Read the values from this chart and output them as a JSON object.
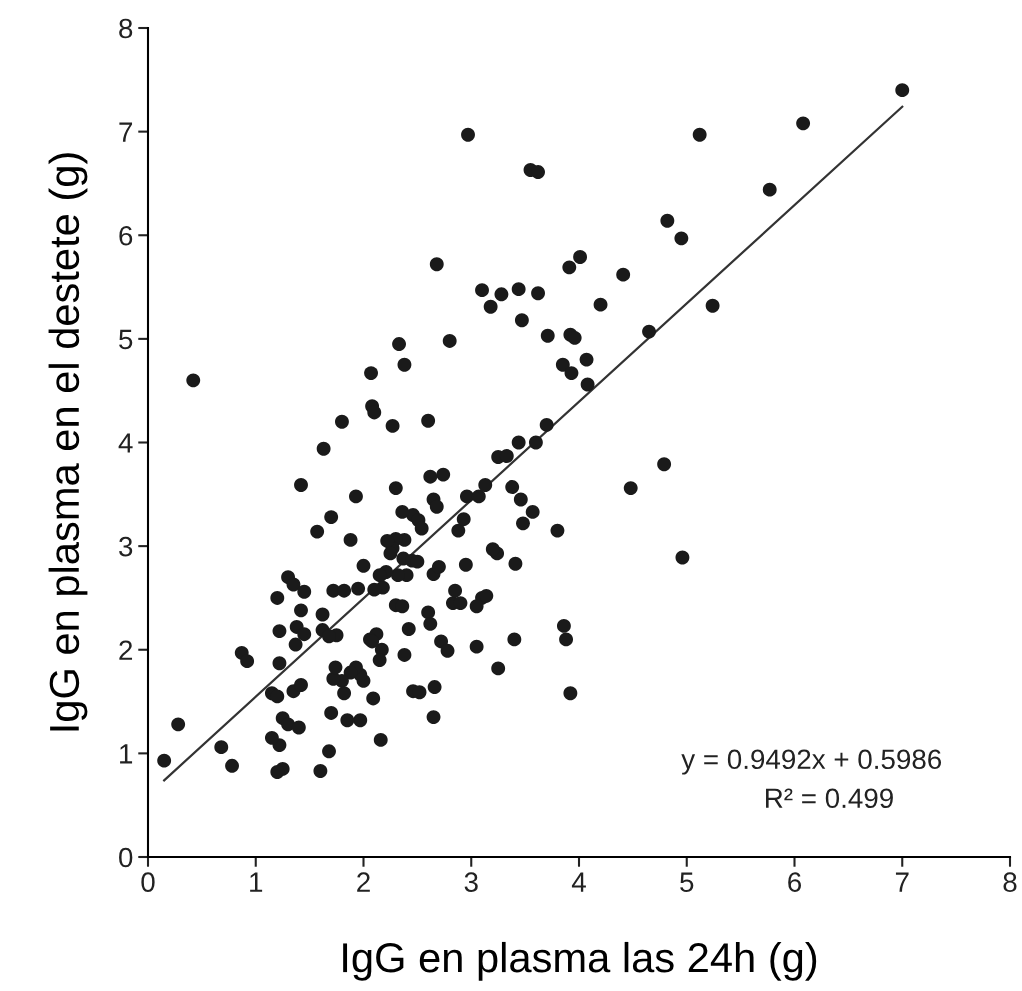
{
  "chart_data": {
    "type": "scatter",
    "xlabel": "IgG en plasma las 24h (g)",
    "ylabel": "IgG en plasma en el destete (g)",
    "xlim": [
      0,
      8
    ],
    "ylim": [
      0,
      8
    ],
    "xticks": [
      0,
      1,
      2,
      3,
      4,
      5,
      6,
      7,
      8
    ],
    "yticks": [
      0,
      1,
      2,
      3,
      4,
      5,
      6,
      7,
      8
    ],
    "grid": false,
    "legend": false,
    "marker": "circle",
    "annotations": [
      "y = 0.9492x + 0.5986",
      "R² = 0.499"
    ],
    "series": [
      {
        "color": "#1a1a1a",
        "x": [
          0.42,
          2.97,
          3.55,
          3.62,
          5.12,
          6.08,
          7.0,
          5.77,
          4.82,
          4.95,
          4.01,
          3.91,
          4.41,
          4.2,
          5.24,
          3.1,
          3.18,
          3.28,
          3.44,
          3.47,
          3.62,
          3.71,
          3.92,
          3.96,
          4.07,
          3.85,
          3.93,
          4.08,
          4.65,
          2.68,
          2.8,
          2.33,
          2.38,
          2.07,
          2.08,
          2.1,
          2.27,
          2.6,
          1.8,
          1.63,
          3.44,
          3.6,
          3.7,
          4.79,
          4.48,
          4.96,
          3.8,
          3.86,
          3.88,
          3.92,
          3.4,
          3.25,
          3.05,
          2.65,
          2.66,
          2.72,
          2.78,
          2.6,
          2.62,
          2.65,
          2.7,
          2.83,
          2.9,
          2.85,
          2.95,
          2.96,
          3.07,
          3.13,
          3.25,
          3.33,
          3.38,
          3.46,
          3.48,
          3.57,
          3.41,
          3.24,
          3.2,
          3.1,
          3.14,
          3.05,
          2.88,
          2.93,
          2.74,
          2.62,
          2.65,
          2.68,
          2.46,
          2.51,
          2.54,
          2.36,
          2.3,
          2.38,
          2.3,
          2.27,
          2.22,
          2.25,
          2.37,
          2.45,
          2.5,
          2.4,
          2.32,
          2.21,
          2.15,
          2.18,
          2.1,
          2.3,
          2.36,
          2.42,
          2.38,
          2.46,
          2.52,
          2.12,
          2.06,
          2.17,
          2.08,
          2.15,
          2.16,
          2.09,
          2.0,
          1.97,
          1.97,
          1.93,
          1.88,
          1.8,
          1.72,
          1.74,
          1.82,
          1.85,
          1.68,
          1.6,
          1.7,
          1.75,
          1.62,
          1.68,
          1.62,
          1.72,
          1.82,
          1.95,
          2.0,
          1.88,
          1.93,
          1.7,
          1.57,
          1.42,
          1.3,
          1.35,
          1.45,
          1.42,
          1.38,
          1.45,
          1.37,
          1.2,
          1.22,
          1.22,
          1.15,
          1.2,
          1.25,
          1.3,
          1.35,
          1.42,
          1.4,
          1.22,
          1.15,
          1.25,
          1.2,
          0.78,
          0.68,
          0.87,
          0.92,
          0.28,
          0.15
        ],
        "values": [
          4.6,
          6.97,
          6.63,
          6.61,
          6.97,
          7.08,
          7.4,
          6.44,
          6.14,
          5.97,
          5.79,
          5.69,
          5.62,
          5.33,
          5.32,
          5.47,
          5.31,
          5.43,
          5.48,
          5.18,
          5.44,
          5.03,
          5.04,
          5.01,
          4.8,
          4.75,
          4.67,
          4.56,
          5.07,
          5.72,
          4.98,
          4.95,
          4.75,
          4.67,
          4.35,
          4.29,
          4.16,
          4.21,
          4.2,
          3.94,
          4.0,
          4.0,
          4.17,
          3.79,
          3.56,
          2.89,
          3.15,
          2.23,
          2.1,
          1.58,
          2.1,
          1.82,
          2.03,
          1.35,
          1.64,
          2.08,
          1.99,
          2.36,
          2.25,
          2.73,
          2.8,
          2.45,
          2.45,
          2.57,
          2.82,
          3.48,
          3.48,
          3.59,
          3.86,
          3.87,
          3.57,
          3.45,
          3.22,
          3.33,
          2.83,
          2.93,
          2.97,
          2.5,
          2.52,
          2.42,
          3.15,
          3.26,
          3.69,
          3.67,
          3.45,
          3.38,
          3.3,
          3.25,
          3.17,
          3.33,
          3.56,
          3.06,
          3.07,
          2.98,
          3.05,
          2.93,
          2.88,
          2.86,
          2.85,
          2.72,
          2.72,
          2.75,
          2.72,
          2.6,
          2.58,
          2.43,
          2.42,
          2.2,
          1.95,
          1.6,
          1.59,
          2.15,
          2.1,
          2.0,
          2.08,
          1.9,
          1.13,
          1.53,
          1.7,
          1.32,
          1.76,
          1.83,
          1.78,
          1.7,
          1.72,
          1.83,
          1.58,
          1.32,
          1.02,
          0.83,
          1.39,
          2.14,
          2.19,
          2.13,
          2.34,
          2.57,
          2.57,
          2.59,
          2.81,
          3.06,
          3.48,
          3.28,
          3.14,
          3.59,
          2.7,
          2.63,
          2.56,
          2.38,
          2.22,
          2.15,
          2.05,
          2.5,
          2.18,
          1.87,
          1.58,
          1.55,
          1.34,
          1.28,
          1.6,
          1.66,
          1.25,
          1.08,
          1.15,
          0.85,
          0.82,
          0.88,
          1.06,
          1.97,
          1.89,
          1.28,
          0.93
        ]
      },
      {
        "type": "line",
        "color": "#333333",
        "x": [
          0.15,
          7.0
        ],
        "values": [
          0.74,
          7.24
        ],
        "marker": "none",
        "line_style": "solid"
      }
    ]
  }
}
